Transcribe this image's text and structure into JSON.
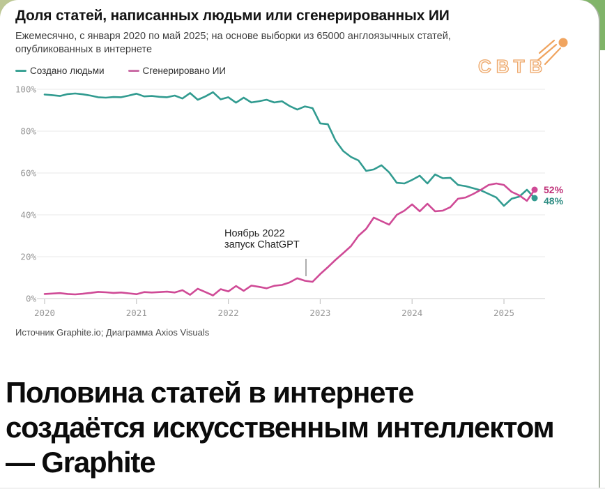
{
  "page": {
    "headline_line1": "Половина статей в интернете",
    "headline_line2": "создаётся искусственным интеллектом",
    "headline_line3": "— Graphite"
  },
  "chart": {
    "title": "Доля статей, написанных людьми или сгенерированных ИИ",
    "subtitle_line1": "Ежемесячно, с января 2020 по май 2025; на основе выборки из 65000 англоязычных статей,",
    "subtitle_line2": "опубликованных в интернете",
    "logo_text": "СВТВ",
    "legend": [
      {
        "label": "Создано людьми",
        "color": "#3da396"
      },
      {
        "label": "Сгенерировано ИИ",
        "color": "#cb6fa7"
      }
    ],
    "annotation": {
      "line1": "Ноябрь 2022",
      "line2": "запуск ChatGPT"
    },
    "end_labels": [
      {
        "text": "52%",
        "color": "#bf3279"
      },
      {
        "text": "48%",
        "color": "#2f8d83"
      }
    ],
    "source": "Источник Graphite.io; Диаграмма Axios Visuals"
  },
  "chart_data": {
    "type": "line",
    "title": "Доля статей, написанных людьми или сгенерированных ИИ",
    "x_unit": "month",
    "x_range": [
      "2020-01",
      "2025-05"
    ],
    "x_tick_labels": [
      "2020",
      "2021",
      "2022",
      "2023",
      "2024",
      "2025"
    ],
    "y_ticks": [
      0,
      20,
      40,
      60,
      80,
      100
    ],
    "y_tick_labels": [
      "0%",
      "20%",
      "40%",
      "60%",
      "80%",
      "100%"
    ],
    "ylim": [
      0,
      100
    ],
    "grid": "horizontal",
    "legend_position": "top-left",
    "annotation": {
      "text": "Ноябрь 2022 запуск ChatGPT",
      "x": "2022-11"
    },
    "series": [
      {
        "name": "Создано людьми",
        "color": "#319b90",
        "end_label": "48%",
        "values": [
          97.5,
          97.2,
          96.8,
          97.7,
          98.0,
          97.6,
          97.0,
          96.2,
          96.0,
          96.3,
          96.2,
          97.0,
          97.9,
          96.6,
          96.8,
          96.4,
          96.2,
          97.0,
          95.6,
          98.2,
          95.0,
          96.6,
          98.6,
          95.2,
          96.2,
          93.6,
          96.0,
          93.7,
          94.3,
          95.0,
          93.7,
          94.3,
          92.0,
          90.3,
          91.8,
          91.0,
          83.7,
          83.3,
          75.5,
          70.5,
          67.7,
          66.0,
          61.0,
          61.7,
          63.7,
          60.3,
          55.3,
          55.0,
          56.7,
          58.7,
          55.0,
          59.3,
          57.5,
          57.7,
          54.3,
          53.7,
          52.7,
          51.7,
          50.0,
          48.3,
          44.3,
          47.7,
          48.7,
          52.0,
          48.0
        ]
      },
      {
        "name": "Сгенерировано ИИ",
        "color": "#cf4a96",
        "end_label": "52%",
        "values": [
          2.2,
          2.4,
          2.6,
          2.2,
          2.0,
          2.3,
          2.7,
          3.2,
          3.0,
          2.7,
          2.9,
          2.5,
          2.1,
          3.1,
          2.9,
          3.1,
          3.3,
          2.9,
          4.0,
          1.8,
          4.7,
          3.1,
          1.5,
          4.5,
          3.4,
          6.0,
          3.7,
          6.2,
          5.6,
          4.9,
          6.1,
          6.5,
          7.7,
          9.7,
          8.5,
          8.0,
          11.7,
          15.0,
          18.5,
          21.7,
          25.0,
          30.0,
          33.3,
          38.7,
          37.0,
          35.3,
          40.0,
          42.0,
          45.0,
          41.7,
          45.3,
          41.7,
          42.0,
          43.7,
          47.7,
          48.3,
          50.0,
          52.0,
          54.3,
          55.0,
          54.3,
          51.0,
          49.3,
          46.7,
          52.0
        ]
      }
    ]
  }
}
